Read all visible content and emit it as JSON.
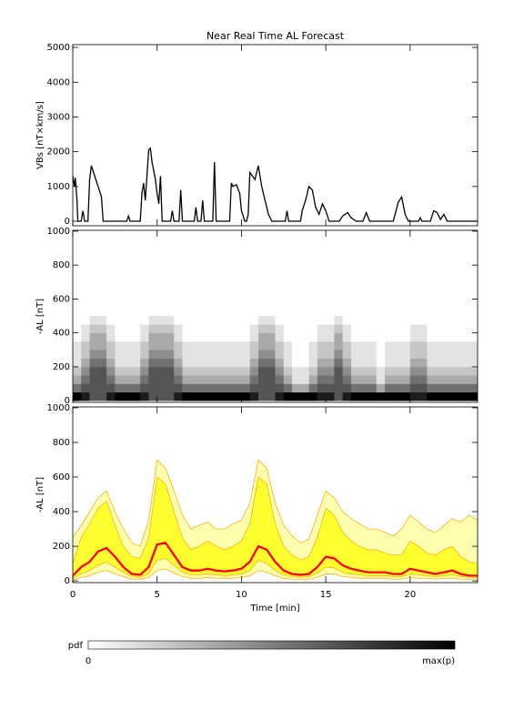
{
  "chart_data": [
    {
      "type": "line",
      "title": "Near Real Time AL Forecast",
      "ylabel": "VBs [nT×km/s]",
      "color": "#000000",
      "xlim": [
        0,
        24
      ],
      "xticks": [
        0,
        5,
        10,
        15,
        20
      ],
      "ylim": [
        -130,
        5080
      ],
      "yticks": [
        0,
        1000,
        2000,
        3000,
        4000,
        5000
      ],
      "x": [
        0,
        0.1,
        0.15,
        0.25,
        0.3,
        0.5,
        0.6,
        0.7,
        0.9,
        1.0,
        1.1,
        1.3,
        1.5,
        1.7,
        1.8,
        3.2,
        3.3,
        3.4,
        4.0,
        4.1,
        4.2,
        4.3,
        4.5,
        4.6,
        4.7,
        4.9,
        5.0,
        5.1,
        5.2,
        5.3,
        5.8,
        5.9,
        6.0,
        6.3,
        6.4,
        6.5,
        7.2,
        7.3,
        7.4,
        7.6,
        7.7,
        7.8,
        8.3,
        8.4,
        8.5,
        9.3,
        9.4,
        9.5,
        9.7,
        9.9,
        10.0,
        10.2,
        10.3,
        10.4,
        10.5,
        10.8,
        11.0,
        11.2,
        11.4,
        11.6,
        11.8,
        12.6,
        12.7,
        12.8,
        13.5,
        13.6,
        13.8,
        14.0,
        14.2,
        14.4,
        14.6,
        14.8,
        15.0,
        15.2,
        15.8,
        16.0,
        16.3,
        16.5,
        16.8,
        17.2,
        17.4,
        17.6,
        19.0,
        19.3,
        19.5,
        19.7,
        19.9,
        20.5,
        20.6,
        20.7,
        21.2,
        21.4,
        21.6,
        21.8,
        22.0,
        22.2,
        24.0
      ],
      "values": [
        1300,
        1000,
        1250,
        600,
        0,
        0,
        300,
        0,
        0,
        1200,
        1600,
        1300,
        1000,
        700,
        0,
        0,
        150,
        0,
        0,
        800,
        1100,
        600,
        2050,
        2100,
        1700,
        1200,
        800,
        500,
        1300,
        0,
        0,
        300,
        0,
        0,
        900,
        0,
        0,
        400,
        0,
        0,
        600,
        0,
        0,
        1700,
        0,
        0,
        1100,
        1000,
        1050,
        800,
        300,
        0,
        0,
        200,
        1400,
        1200,
        1600,
        1000,
        600,
        200,
        0,
        0,
        300,
        0,
        0,
        300,
        600,
        1000,
        900,
        400,
        200,
        500,
        300,
        0,
        0,
        150,
        250,
        100,
        0,
        0,
        250,
        0,
        0,
        550,
        700,
        200,
        0,
        0,
        100,
        0,
        0,
        300,
        250,
        50,
        200,
        0,
        0
      ]
    },
    {
      "type": "heatmap",
      "ylabel": "-AL [nT]",
      "xlim": [
        0,
        24
      ],
      "xticks": [
        0,
        5,
        10,
        15,
        20
      ],
      "ylim": [
        -10,
        1005
      ],
      "yticks": [
        0,
        200,
        400,
        600,
        800,
        1000
      ],
      "zlim": [
        0,
        9
      ],
      "xbins": [
        0,
        0.5,
        1,
        1.5,
        2,
        2.5,
        3,
        3.5,
        4,
        4.5,
        5,
        5.5,
        6,
        6.5,
        7,
        7.5,
        8,
        8.5,
        9,
        9.5,
        10,
        10.5,
        11,
        11.5,
        12,
        12.5,
        13,
        13.5,
        14,
        14.5,
        15,
        15.5,
        16,
        16.5,
        17,
        17.5,
        18,
        18.5,
        19,
        19.5,
        20,
        20.5,
        21,
        21.5,
        22,
        22.5,
        23,
        23.5,
        24
      ],
      "ybins": [
        0,
        50,
        100,
        150,
        200,
        250,
        300,
        350,
        400,
        450,
        500
      ],
      "z": [
        [
          9,
          8,
          6,
          6,
          8,
          9,
          9,
          9,
          8,
          6,
          6,
          6,
          8,
          9,
          9,
          9,
          9,
          9,
          9,
          9,
          9,
          8,
          6,
          6,
          8,
          9,
          9,
          9,
          9,
          8,
          8,
          6,
          8,
          9,
          9,
          9,
          9,
          9,
          9,
          9,
          8,
          8,
          9,
          9,
          9,
          9,
          9,
          9
        ],
        [
          5,
          6,
          6,
          6,
          6,
          5,
          5,
          5,
          6,
          6,
          6,
          6,
          6,
          5,
          5,
          5,
          5,
          5,
          5,
          5,
          5,
          6,
          6,
          6,
          6,
          5,
          3,
          3,
          5,
          6,
          6,
          6,
          6,
          5,
          5,
          5,
          3,
          5,
          5,
          5,
          6,
          6,
          5,
          5,
          5,
          5,
          5,
          5
        ],
        [
          3,
          5,
          6,
          6,
          5,
          3,
          3,
          3,
          5,
          6,
          6,
          6,
          5,
          3,
          3,
          3,
          3,
          3,
          3,
          3,
          3,
          5,
          6,
          6,
          5,
          3,
          1,
          1,
          3,
          5,
          5,
          6,
          5,
          3,
          3,
          3,
          1,
          3,
          3,
          3,
          5,
          5,
          3,
          3,
          3,
          3,
          3,
          3
        ],
        [
          2,
          4,
          6,
          6,
          4,
          2,
          2,
          2,
          4,
          6,
          6,
          6,
          4,
          2,
          2,
          2,
          2,
          2,
          2,
          2,
          2,
          4,
          6,
          6,
          4,
          2,
          1,
          1,
          2,
          4,
          4,
          6,
          4,
          2,
          2,
          2,
          1,
          2,
          2,
          2,
          4,
          4,
          2,
          2,
          2,
          2,
          2,
          2
        ],
        [
          1,
          3,
          5,
          5,
          3,
          1,
          1,
          1,
          3,
          5,
          5,
          5,
          3,
          1,
          1,
          1,
          1,
          1,
          1,
          1,
          1,
          3,
          5,
          5,
          3,
          1,
          0,
          0,
          1,
          3,
          3,
          5,
          3,
          1,
          1,
          1,
          0,
          1,
          1,
          1,
          3,
          3,
          1,
          1,
          1,
          1,
          1,
          1
        ],
        [
          1,
          2,
          4,
          4,
          2,
          1,
          1,
          1,
          2,
          4,
          4,
          4,
          2,
          1,
          1,
          1,
          1,
          1,
          1,
          1,
          1,
          2,
          4,
          4,
          2,
          1,
          0,
          0,
          1,
          2,
          2,
          4,
          2,
          1,
          1,
          1,
          0,
          1,
          1,
          1,
          2,
          2,
          1,
          1,
          1,
          1,
          1,
          1
        ],
        [
          1,
          2,
          3,
          3,
          2,
          1,
          1,
          1,
          2,
          3,
          3,
          3,
          2,
          1,
          1,
          1,
          1,
          1,
          1,
          1,
          1,
          2,
          3,
          3,
          2,
          1,
          0,
          0,
          1,
          2,
          2,
          3,
          2,
          1,
          1,
          1,
          0,
          1,
          1,
          1,
          2,
          2,
          1,
          1,
          1,
          1,
          1,
          1
        ],
        [
          0,
          1,
          3,
          3,
          1,
          0,
          0,
          0,
          1,
          3,
          3,
          3,
          1,
          0,
          0,
          0,
          0,
          0,
          0,
          0,
          0,
          1,
          3,
          3,
          1,
          0,
          0,
          0,
          0,
          1,
          1,
          3,
          1,
          0,
          0,
          0,
          0,
          0,
          0,
          0,
          1,
          1,
          0,
          0,
          0,
          0,
          0,
          0
        ],
        [
          0,
          1,
          2,
          2,
          1,
          0,
          0,
          0,
          1,
          2,
          2,
          2,
          1,
          0,
          0,
          0,
          0,
          0,
          0,
          0,
          0,
          1,
          2,
          2,
          1,
          0,
          0,
          0,
          0,
          1,
          1,
          2,
          1,
          0,
          0,
          0,
          0,
          0,
          0,
          0,
          1,
          1,
          0,
          0,
          0,
          0,
          0,
          0
        ],
        [
          0,
          0,
          1,
          1,
          0,
          0,
          0,
          0,
          0,
          1,
          1,
          1,
          0,
          0,
          0,
          0,
          0,
          0,
          0,
          0,
          0,
          0,
          1,
          1,
          0,
          0,
          0,
          0,
          0,
          0,
          0,
          1,
          0,
          0,
          0,
          0,
          0,
          0,
          0,
          0,
          0,
          0,
          0,
          0,
          0,
          0,
          0,
          0
        ]
      ]
    },
    {
      "type": "band",
      "ylabel": "-AL [nT]",
      "xlabel": "Time [min]",
      "xlim": [
        0,
        24
      ],
      "xticks": [
        0,
        5,
        10,
        15,
        20
      ],
      "ylim": [
        -10,
        1005
      ],
      "yticks": [
        0,
        200,
        400,
        600,
        800,
        1000
      ],
      "x": [
        0,
        0.5,
        1,
        1.5,
        2,
        2.5,
        3,
        3.5,
        4,
        4.5,
        5,
        5.5,
        6,
        6.5,
        7,
        7.5,
        8,
        8.5,
        9,
        9.5,
        10,
        10.5,
        11,
        11.5,
        12,
        12.5,
        13,
        13.5,
        14,
        14.5,
        15,
        15.5,
        16,
        16.5,
        17,
        17.5,
        18,
        18.5,
        19,
        19.5,
        20,
        20.5,
        21,
        21.5,
        22,
        22.5,
        23,
        23.5,
        24
      ],
      "bands": [
        {
          "color": "#ffffb0",
          "line_color": "#ffa500",
          "lower": [
            5,
            20,
            30,
            50,
            60,
            40,
            25,
            10,
            10,
            20,
            60,
            70,
            45,
            25,
            15,
            15,
            20,
            15,
            15,
            15,
            20,
            30,
            60,
            50,
            30,
            15,
            10,
            10,
            10,
            20,
            40,
            40,
            25,
            20,
            15,
            15,
            15,
            15,
            10,
            10,
            20,
            15,
            15,
            10,
            15,
            15,
            10,
            10,
            10
          ],
          "upper": [
            250,
            320,
            400,
            480,
            520,
            400,
            300,
            220,
            200,
            350,
            700,
            650,
            520,
            380,
            300,
            320,
            340,
            300,
            300,
            330,
            350,
            450,
            700,
            650,
            450,
            320,
            260,
            220,
            240,
            380,
            520,
            480,
            400,
            360,
            330,
            300,
            300,
            280,
            260,
            300,
            380,
            340,
            300,
            280,
            320,
            360,
            340,
            380,
            350
          ]
        },
        {
          "color": "#ffff30",
          "line_color": "#ffa500",
          "lower": [
            15,
            40,
            60,
            90,
            110,
            80,
            50,
            25,
            20,
            40,
            120,
            130,
            90,
            50,
            35,
            35,
            40,
            35,
            30,
            35,
            40,
            60,
            120,
            100,
            60,
            35,
            25,
            20,
            25,
            45,
            80,
            75,
            50,
            40,
            35,
            30,
            30,
            30,
            25,
            25,
            40,
            35,
            30,
            25,
            30,
            35,
            25,
            20,
            20
          ],
          "upper": [
            100,
            250,
            330,
            420,
            460,
            320,
            200,
            140,
            130,
            250,
            600,
            560,
            400,
            250,
            180,
            200,
            230,
            200,
            180,
            200,
            230,
            330,
            600,
            560,
            330,
            200,
            150,
            120,
            140,
            250,
            420,
            380,
            280,
            230,
            200,
            180,
            180,
            160,
            150,
            150,
            230,
            200,
            160,
            150,
            180,
            200,
            140,
            110,
            100
          ]
        }
      ],
      "median": {
        "color": "#ff0000",
        "values": [
          30,
          80,
          110,
          170,
          190,
          140,
          80,
          40,
          35,
          80,
          210,
          220,
          150,
          80,
          60,
          60,
          70,
          60,
          55,
          60,
          70,
          110,
          200,
          180,
          110,
          60,
          40,
          35,
          40,
          80,
          140,
          130,
          90,
          70,
          60,
          50,
          50,
          50,
          40,
          40,
          70,
          60,
          50,
          40,
          50,
          60,
          40,
          30,
          30
        ]
      }
    }
  ],
  "colorbar": {
    "label": "pdf",
    "min_label": "0",
    "max_label": "max(p)",
    "colors": [
      "#ffffff",
      "#000000"
    ]
  }
}
